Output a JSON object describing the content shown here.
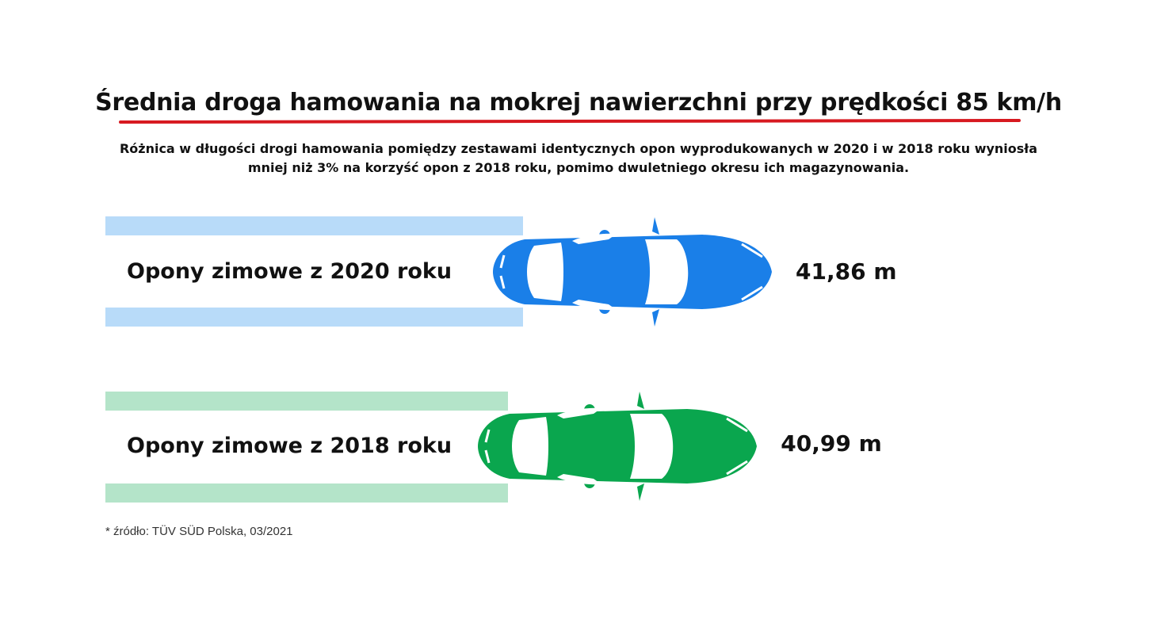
{
  "header": {
    "title": "Średnia droga hamowania na mokrej nawierzchni przy prędkości 85 km/h",
    "subtitle_line1": "Różnica w długości drogi hamowania pomiędzy zestawami identycznych opon wyprodukowanych w 2020 i w 2018 roku wyniosła",
    "subtitle_line2": "mniej niż 3% na korzyść opon z 2018 roku, pomimo dwuletniego okresu ich magazynowania.",
    "underline_color": "#d71920"
  },
  "chart_data": {
    "type": "bar",
    "title": "Średnia droga hamowania na mokrej nawierzchni przy prędkości 85 km/h",
    "categories": [
      "Opony zimowe z 2020 roku",
      "Opony zimowe z 2018 roku"
    ],
    "values": [
      41.86,
      40.99
    ],
    "value_labels": [
      "41,86 m",
      "40,99 m"
    ],
    "unit": "m",
    "colors": [
      "#1a7fe8",
      "#0aa64e"
    ],
    "stripe_colors": [
      "#b8dbf9",
      "#b4e4c9"
    ],
    "mark": "car-icon"
  },
  "footer": {
    "source": "* źródło: TÜV SÜD Polska, 03/2021"
  }
}
